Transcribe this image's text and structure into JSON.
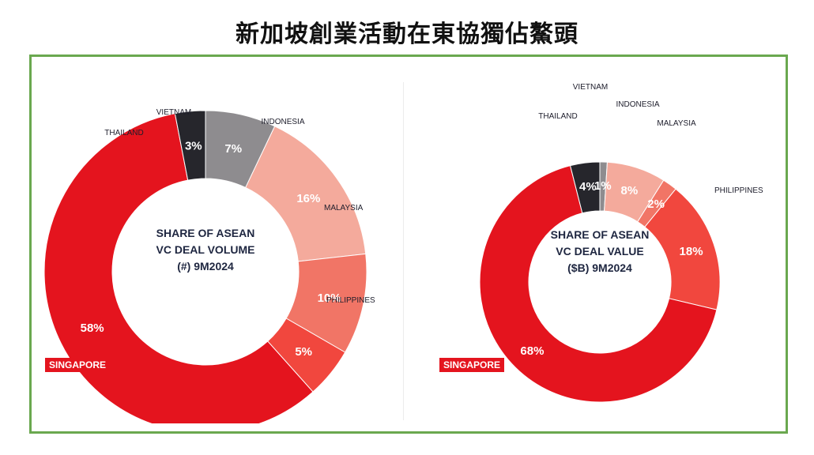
{
  "page": {
    "title": "新加坡創業活動在東協獨佔鰲頭"
  },
  "chart_data": [
    {
      "type": "pie",
      "center_title": [
        "SHARE OF ASEAN",
        "VC DEAL VOLUME",
        "(#) 9M2024"
      ],
      "categories": [
        "VIETNAM",
        "INDONESIA",
        "MALAYSIA",
        "PHILIPPINES",
        "SINGAPORE",
        "THAILAND"
      ],
      "values": [
        7,
        16,
        10,
        5,
        58,
        3
      ],
      "value_labels": [
        "7%",
        "16%",
        "10%",
        "5%",
        "58%",
        "3%"
      ],
      "colors": [
        "#8e8c8f",
        "#f4aa9c",
        "#f17566",
        "#f1473e",
        "#e4141e",
        "#26262c"
      ]
    },
    {
      "type": "pie",
      "center_title": [
        "SHARE OF ASEAN",
        "VC DEAL VALUE",
        "($B) 9M2024"
      ],
      "categories": [
        "VIETNAM",
        "INDONESIA",
        "MALAYSIA",
        "PHILIPPINES",
        "SINGAPORE",
        "THAILAND"
      ],
      "values": [
        1,
        8,
        2,
        18,
        68,
        4
      ],
      "value_labels": [
        "1%",
        "8%",
        "2%",
        "18%",
        "68%",
        "4%"
      ],
      "colors": [
        "#8e8c8f",
        "#f4aa9c",
        "#f17566",
        "#f1473e",
        "#e4141e",
        "#26262c"
      ]
    }
  ]
}
